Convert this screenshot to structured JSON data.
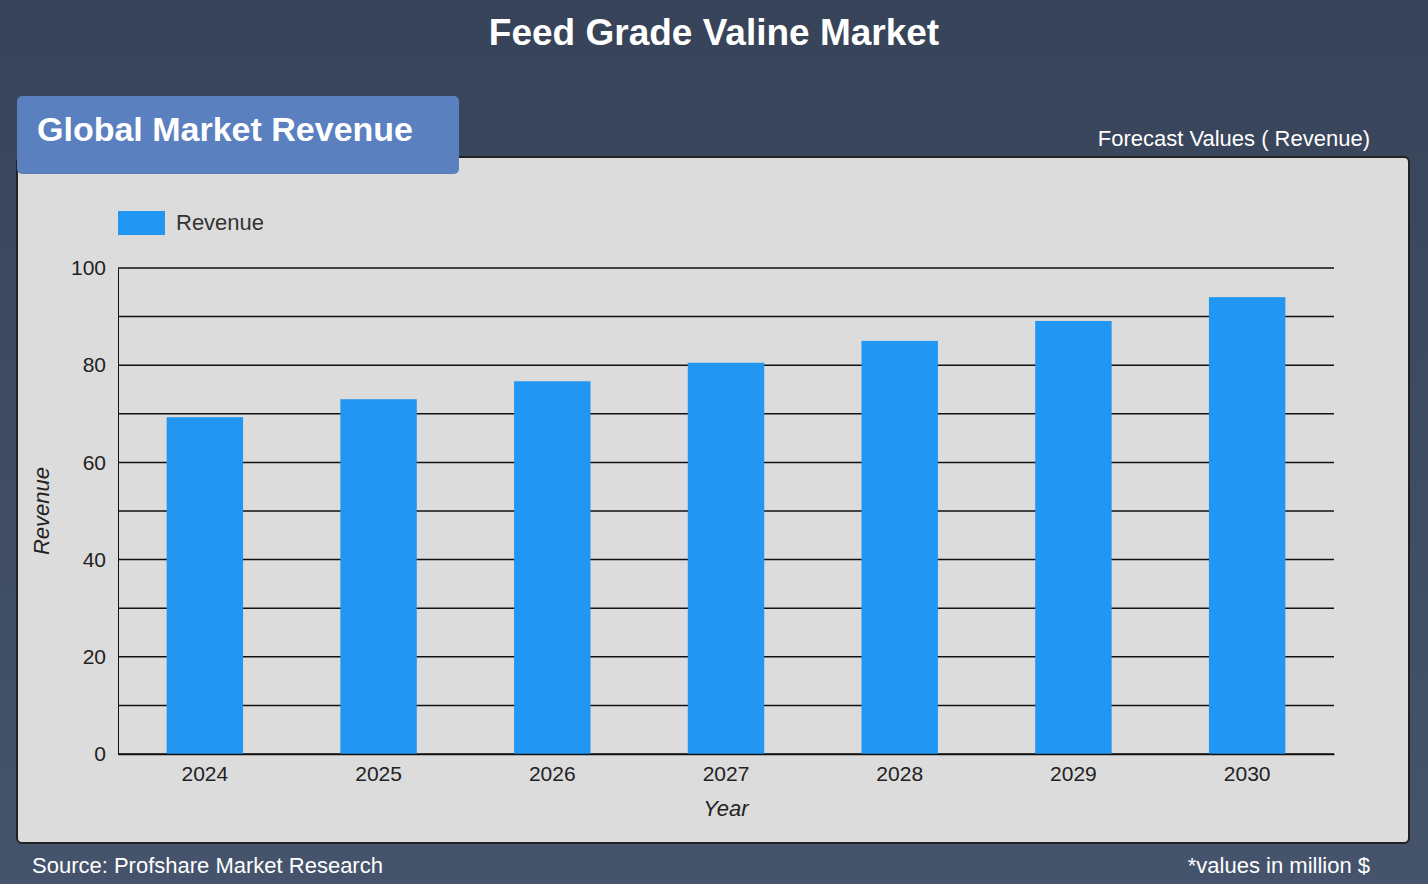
{
  "chart_data": {
    "type": "bar",
    "title": "Feed Grade Valine Market",
    "subtitle": "Global Market Revenue",
    "annotations": [
      "Forecast Values ( Revenue)",
      "Source: Profshare Market Research",
      "*values in million $"
    ],
    "x_label": "Year",
    "y_label": "Revenue",
    "categories": [
      "2024",
      "2025",
      "2026",
      "2027",
      "2028",
      "2029",
      "2030"
    ],
    "series": [
      {
        "name": "Revenue",
        "color": "#2196f3",
        "values": [
          69.3,
          73.0,
          76.7,
          80.5,
          85.0,
          89.1,
          94.0
        ]
      }
    ],
    "ylim": [
      0,
      100
    ],
    "yticks": [
      0,
      20,
      40,
      60,
      80,
      100
    ],
    "grid": true,
    "legend": "top-left"
  }
}
